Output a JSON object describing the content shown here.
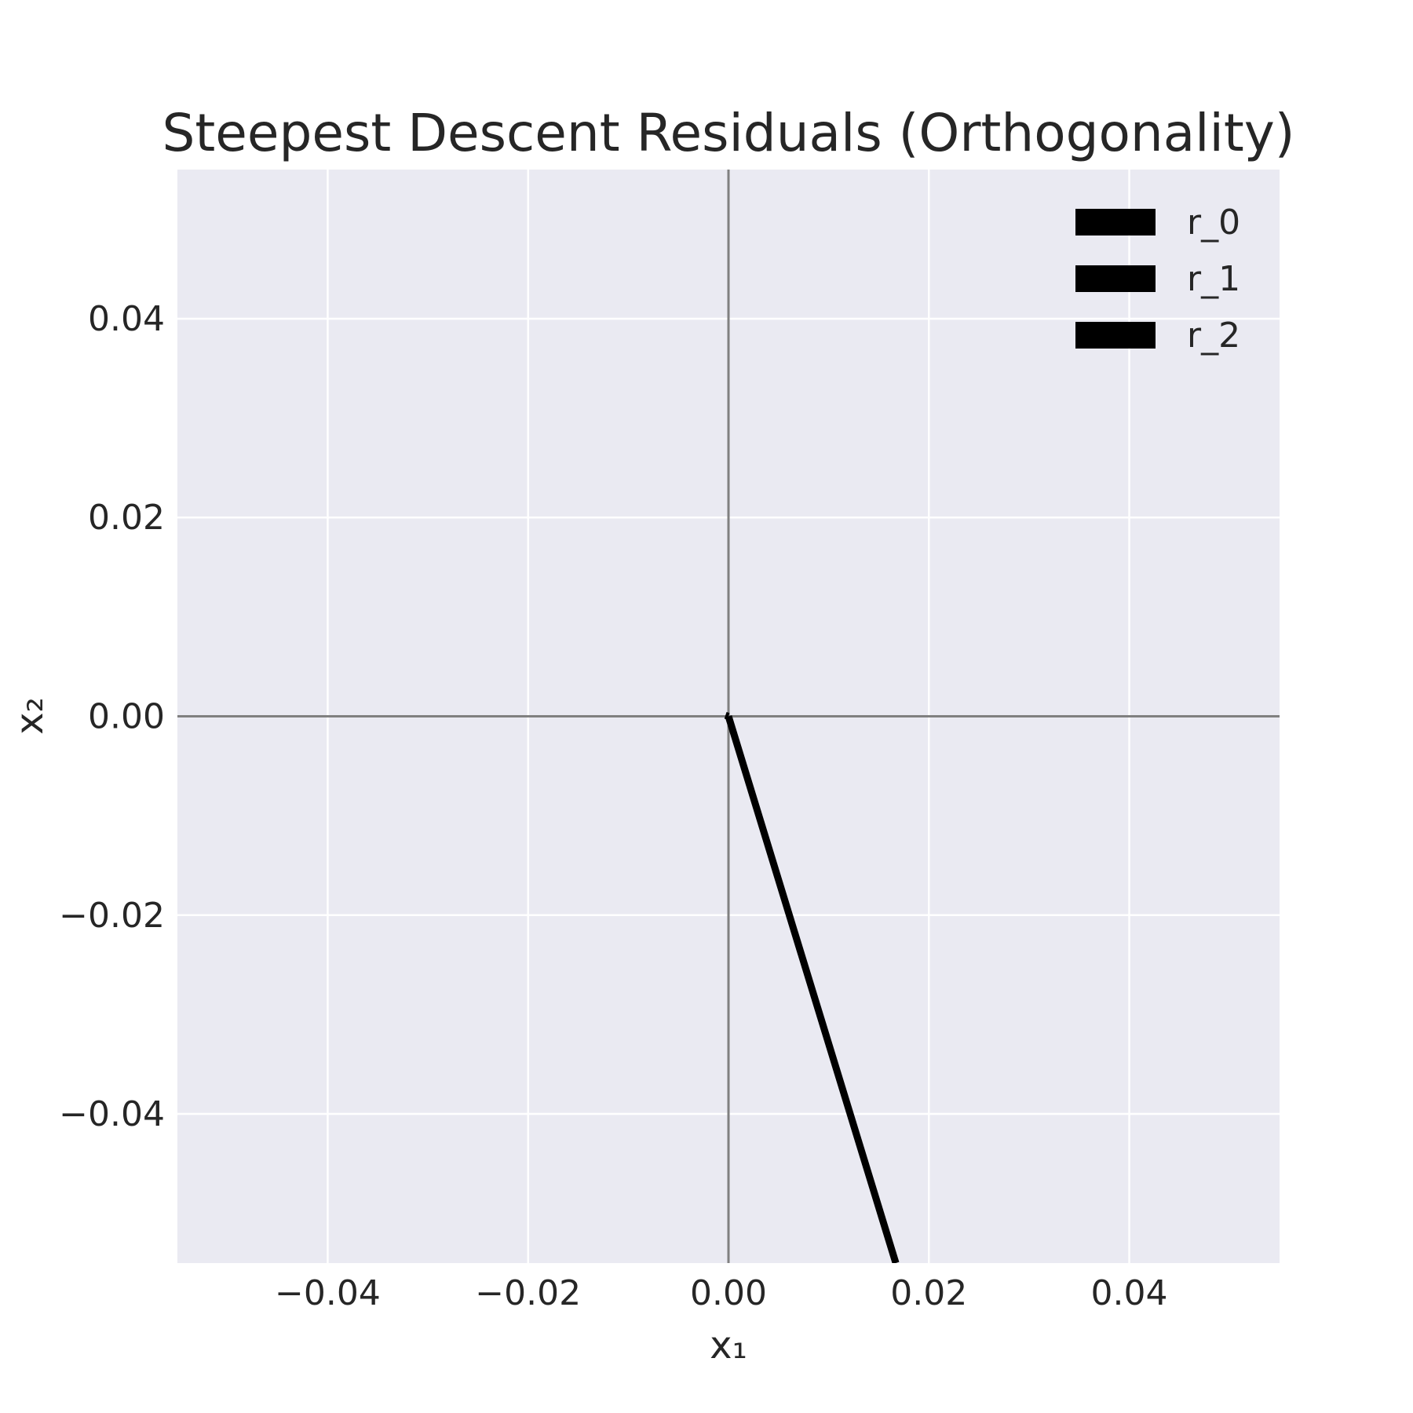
{
  "chart_data": {
    "type": "line",
    "title": "Steepest Descent Residuals (Orthogonality)",
    "xlabel": "x₁",
    "ylabel": "x₂",
    "xlim": [
      -0.055,
      0.055
    ],
    "ylim": [
      -0.055,
      0.055
    ],
    "xticks": [
      -0.04,
      -0.02,
      0.0,
      0.02,
      0.04
    ],
    "yticks": [
      -0.04,
      -0.02,
      0.0,
      0.02,
      0.04
    ],
    "xtick_labels": [
      "−0.04",
      "−0.02",
      "0.00",
      "0.02",
      "0.04"
    ],
    "ytick_labels": [
      "−0.04",
      "−0.02",
      "0.00",
      "0.02",
      "0.04"
    ],
    "grid": true,
    "legend_position": "top-right",
    "reference_lines": {
      "x": 0,
      "y": 0,
      "color": "#808080"
    },
    "series": [
      {
        "name": "r_0",
        "color": "#000000",
        "x": [
          0,
          0.0167
        ],
        "y": [
          0,
          -0.055
        ]
      },
      {
        "name": "r_1",
        "color": "#000000",
        "x": [
          0,
          -0.0003
        ],
        "y": [
          0,
          0.0001
        ]
      },
      {
        "name": "r_2",
        "color": "#000000",
        "x": [
          0,
          0.0
        ],
        "y": [
          0,
          -0.0002
        ]
      }
    ],
    "colors": {
      "plot_background": "#eaeaf2",
      "grid": "#ffffff",
      "text": "#262626"
    }
  }
}
